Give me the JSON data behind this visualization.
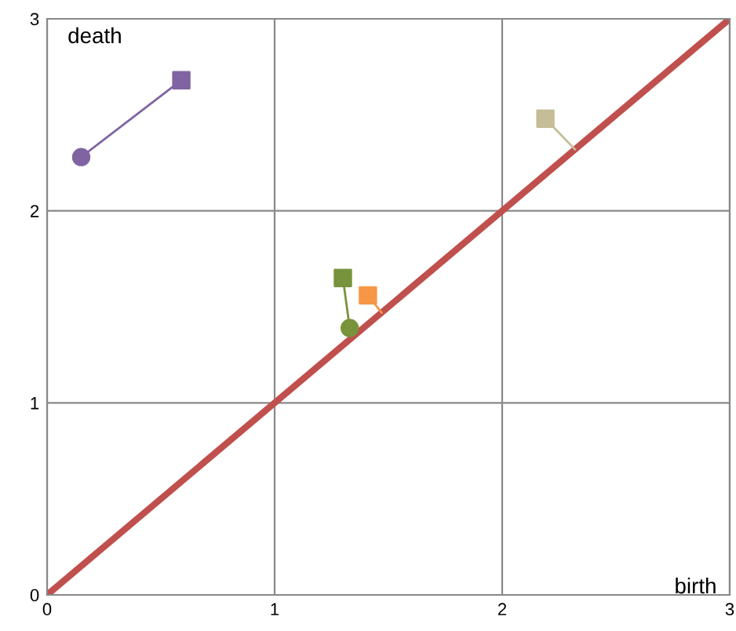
{
  "chart_data": {
    "type": "line",
    "xlabel": "birth",
    "ylabel": "death",
    "xlim": [
      0,
      3
    ],
    "ylim": [
      0,
      3
    ],
    "xticks": [
      0,
      1,
      2,
      3
    ],
    "yticks": [
      0,
      1,
      2,
      3
    ],
    "grid": true,
    "series": [
      {
        "x": [
          0,
          3
        ],
        "values": [
          0,
          3
        ],
        "color": "#c0504d",
        "marker": "none"
      },
      {
        "x": [
          0.15,
          0.59
        ],
        "values": [
          2.28,
          2.68
        ],
        "color": "#8064a2",
        "marker": "none"
      },
      {
        "x": [
          1.3,
          1.33
        ],
        "values": [
          1.65,
          1.39
        ],
        "color": "#77933c",
        "marker": "none"
      },
      {
        "x": [
          1.41,
          1.47
        ],
        "values": [
          1.56,
          1.47
        ],
        "color": "#f79646",
        "marker": "none"
      },
      {
        "x": [
          2.19,
          2.32
        ],
        "values": [
          2.48,
          2.32
        ],
        "color": "#c4bd97",
        "marker": "none"
      },
      {
        "type": "scatter",
        "x": [
          0.15,
          1.33
        ],
        "values": [
          2.28,
          1.39
        ],
        "colors": [
          "#8064a2",
          "#77933c"
        ],
        "marker": "circle"
      },
      {
        "type": "scatter",
        "x": [
          0.59,
          1.3,
          1.41,
          2.19
        ],
        "values": [
          2.68,
          1.65,
          1.56,
          2.48
        ],
        "colors": [
          "#8064a2",
          "#77933c",
          "#f79646",
          "#c4bd97"
        ],
        "marker": "square"
      }
    ]
  }
}
